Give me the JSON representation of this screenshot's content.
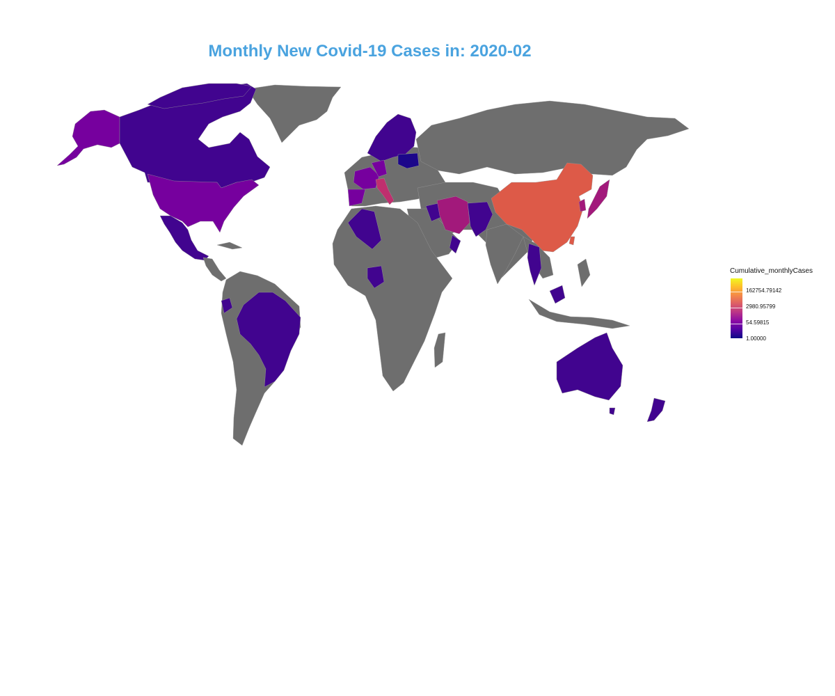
{
  "title": "Monthly New Covid-19 Cases in: 2020-02",
  "legend": {
    "title": "Cumulative_monthlyCases",
    "scale": "log",
    "breaks": [
      "162754.79142",
      "2980.95799",
      "54.59815",
      "1.00000"
    ],
    "gradient": [
      "#0d0887",
      "#5302a3",
      "#8b0aa5",
      "#b83289",
      "#db5c68",
      "#f48849",
      "#febd2a",
      "#f0f921"
    ]
  },
  "colors": {
    "no_data": "#6e6e6e",
    "very_low": "#1c078a",
    "low": "#41048f",
    "low_mid": "#5b0298",
    "mid": "#76009e",
    "upper_mid": "#8a0aa5",
    "high": "#a2197b",
    "italy": "#bf2f6e",
    "china": "#dd5a48",
    "title": "#4aa3df"
  },
  "chart_data": {
    "type": "choropleth",
    "title": "Monthly New Covid-19 Cases in: 2020-02",
    "legend_title": "Cumulative_monthlyCases",
    "color_scale": "log",
    "legend_breaks": [
      162754.79142,
      2980.95799,
      54.59815,
      1.0
    ],
    "legend_placement": "right",
    "regions": [
      {
        "region": "China",
        "level": "high"
      },
      {
        "region": "South Korea",
        "level": "high"
      },
      {
        "region": "Italy",
        "level": "upper-mid"
      },
      {
        "region": "Iran",
        "level": "upper-mid"
      },
      {
        "region": "Japan",
        "level": "upper-mid"
      },
      {
        "region": "United States",
        "level": "mid"
      },
      {
        "region": "Alaska",
        "level": "mid"
      },
      {
        "region": "France",
        "level": "mid"
      },
      {
        "region": "Germany",
        "level": "mid"
      },
      {
        "region": "Spain",
        "level": "mid"
      },
      {
        "region": "Canada",
        "level": "low"
      },
      {
        "region": "Mexico",
        "level": "low"
      },
      {
        "region": "Brazil",
        "level": "low"
      },
      {
        "region": "Ecuador",
        "level": "low"
      },
      {
        "region": "Australia",
        "level": "low"
      },
      {
        "region": "New Zealand",
        "level": "low"
      },
      {
        "region": "Algeria",
        "level": "low"
      },
      {
        "region": "Nigeria",
        "level": "low"
      },
      {
        "region": "Afghanistan",
        "level": "low"
      },
      {
        "region": "Pakistan",
        "level": "low"
      },
      {
        "region": "Thailand",
        "level": "low"
      },
      {
        "region": "Malaysia",
        "level": "low"
      },
      {
        "region": "Norway",
        "level": "low"
      },
      {
        "region": "Sweden",
        "level": "low"
      },
      {
        "region": "Finland",
        "level": "low"
      },
      {
        "region": "Belarus",
        "level": "very-low"
      },
      {
        "region": "Oman",
        "level": "low"
      },
      {
        "region": "Iraq",
        "level": "low"
      }
    ]
  }
}
